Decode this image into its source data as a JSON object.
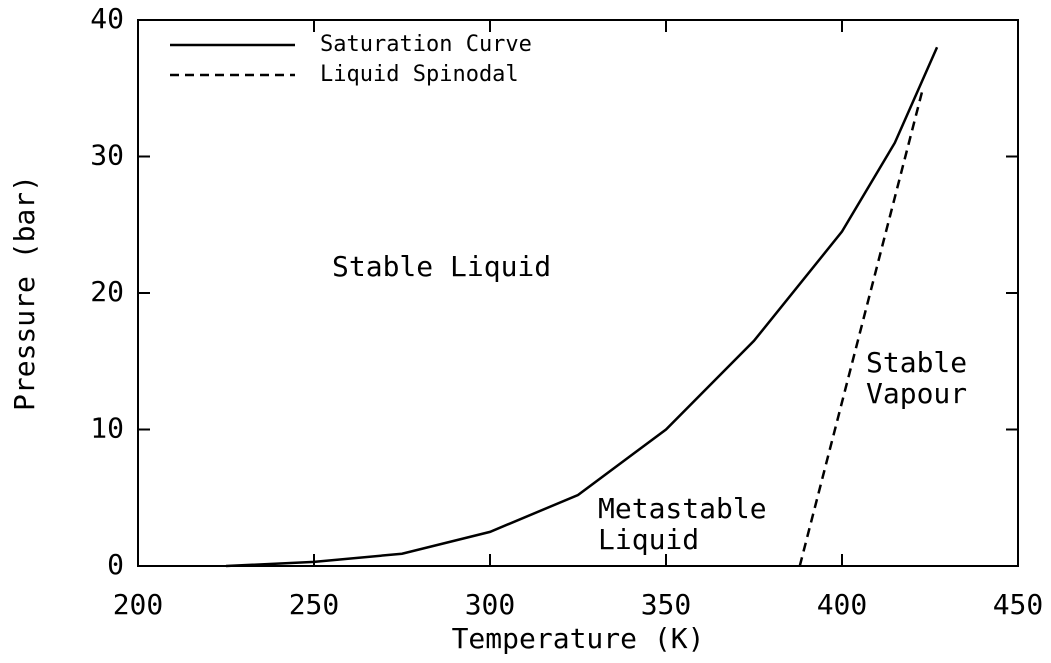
{
  "chart_data": {
    "type": "line",
    "xlabel": "Temperature (K)",
    "ylabel": "Pressure (bar)",
    "xlim": [
      200,
      450
    ],
    "xticks": [
      200,
      250,
      300,
      350,
      400,
      450
    ],
    "ylim": [
      0,
      40
    ],
    "yticks": [
      0,
      10,
      20,
      30,
      40
    ],
    "legend": "upper left",
    "series": [
      {
        "name": "Saturation Curve",
        "color": "#000000",
        "dash": "solid",
        "x": [
          225,
          250,
          275,
          300,
          325,
          350,
          375,
          400,
          415,
          427
        ],
        "values": [
          0,
          0.3,
          0.9,
          2.5,
          5.2,
          10,
          16.5,
          24.5,
          31,
          38
        ]
      },
      {
        "name": "Liquid Spinodal",
        "color": "#000000",
        "dash": "dashed",
        "x": [
          388,
          400,
          410,
          423
        ],
        "values": [
          0,
          12,
          22,
          35
        ]
      }
    ],
    "annotations": [
      [
        "Stable Liquid"
      ],
      [
        "Stable",
        "Vapour"
      ],
      [
        "Metastable",
        "Liquid"
      ]
    ]
  }
}
